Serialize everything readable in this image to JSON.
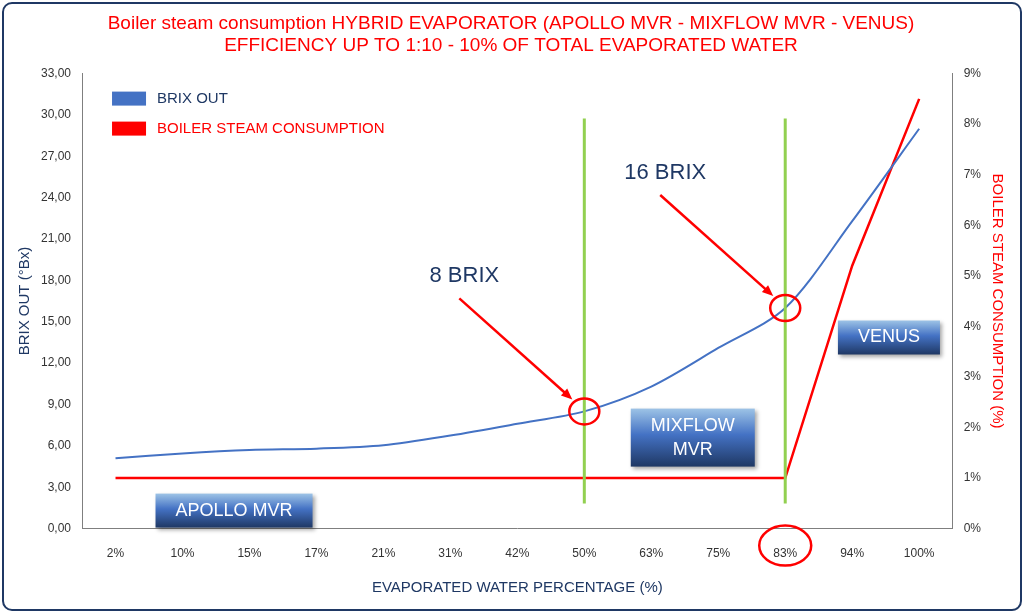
{
  "chart_data": {
    "type": "line",
    "title": [
      "Boiler steam consumption HYBRID EVAPORATOR (APOLLO MVR - MIXFLOW MVR - VENUS)",
      "EFFICIENCY UP TO 1:10 - 10% OF TOTAL EVAPORATED WATER"
    ],
    "x_label": "EVAPORATED WATER PERCENTAGE (%)",
    "y_label": "BRIX OUT (°Bx)",
    "y2_label": "BOILER STEAM CONSUMPTION (%)",
    "categories": [
      "2%",
      "10%",
      "15%",
      "17%",
      "21%",
      "31%",
      "42%",
      "50%",
      "63%",
      "75%",
      "83%",
      "94%",
      "100%"
    ],
    "series": [
      {
        "name": "BRIX OUT",
        "color": "#4472c4",
        "values": [
          5.1,
          5.45,
          5.7,
          5.8,
          6.05,
          6.75,
          7.6,
          8.5,
          10.3,
          13.1,
          16.0,
          22.3,
          29.0
        ]
      },
      {
        "name": "BOILER STEAM CONSUMPTION",
        "color": "#ff0000",
        "axis": "y2",
        "values": [
          1.0,
          1.0,
          1.0,
          1.0,
          1.0,
          1.0,
          1.0,
          1.0,
          1.0,
          1.0,
          1.0,
          5.2,
          8.5
        ]
      }
    ],
    "ylim": [
      0,
      33
    ],
    "yticks": [
      {
        "value": 0,
        "label": "0,00"
      },
      {
        "value": 3,
        "label": "3,00"
      },
      {
        "value": 6,
        "label": "6,00"
      },
      {
        "value": 9,
        "label": "9,00"
      },
      {
        "value": 12,
        "label": "12,00"
      },
      {
        "value": 15,
        "label": "15,00"
      },
      {
        "value": 18,
        "label": "18,00"
      },
      {
        "value": 21,
        "label": "21,00"
      },
      {
        "value": 24,
        "label": "24,00"
      },
      {
        "value": 27,
        "label": "27,00"
      },
      {
        "value": 30,
        "label": "30,00"
      },
      {
        "value": 33,
        "label": "33,00"
      }
    ],
    "y2lim": [
      0,
      9
    ],
    "y2ticks": [
      {
        "value": 0,
        "label": "0%"
      },
      {
        "value": 1,
        "label": "1%"
      },
      {
        "value": 2,
        "label": "2%"
      },
      {
        "value": 3,
        "label": "3%"
      },
      {
        "value": 4,
        "label": "4%"
      },
      {
        "value": 5,
        "label": "5%"
      },
      {
        "value": 6,
        "label": "6%"
      },
      {
        "value": 7,
        "label": "7%"
      },
      {
        "value": 8,
        "label": "8%"
      },
      {
        "value": 9,
        "label": "9%"
      }
    ],
    "grid": false,
    "legend": "upper left",
    "annotations": [
      {
        "text": "8 BRIX",
        "x": "50%",
        "series": "BRIX OUT"
      },
      {
        "text": "16 BRIX",
        "x": "83%",
        "series": "BRIX OUT"
      }
    ],
    "regions": [
      {
        "label": "APOLLO MVR",
        "from": "2%",
        "to": "50%"
      },
      {
        "label": "MIXFLOW MVR",
        "from": "50%",
        "to": "83%"
      },
      {
        "label": "VENUS",
        "from": "83%",
        "to": "100%"
      }
    ],
    "circled_tick": "83%"
  }
}
